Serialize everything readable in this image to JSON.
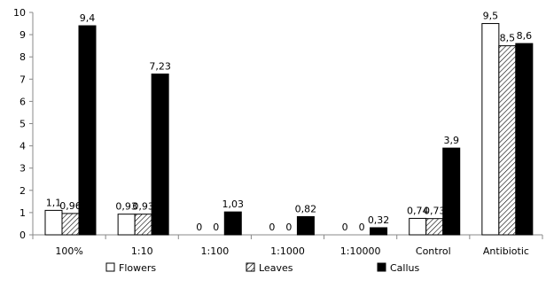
{
  "chart_data": {
    "type": "bar",
    "categories": [
      "100%",
      "1:10",
      "1:100",
      "1:1000",
      "1:10000",
      "Control",
      "Antibiotic"
    ],
    "series": [
      {
        "name": "Flowers",
        "values": [
          1.1,
          0.93,
          0,
          0,
          0,
          0.74,
          9.5
        ],
        "labels": [
          "1,1",
          "0,93",
          "0",
          "0",
          "0",
          "0,74",
          "9,5"
        ],
        "fill": "#ffffff",
        "pattern": "none"
      },
      {
        "name": "Leaves",
        "values": [
          0.96,
          0.93,
          0,
          0,
          0,
          0.73,
          8.5
        ],
        "labels": [
          "0,96",
          "0,93",
          "0",
          "0",
          "0",
          "0,73",
          "8,5"
        ],
        "fill": "#ffffff",
        "pattern": "hatch"
      },
      {
        "name": "Callus",
        "values": [
          9.4,
          7.23,
          1.03,
          0.82,
          0.32,
          3.9,
          8.6
        ],
        "labels": [
          "9,4",
          "7,23",
          "1,03",
          "0,82",
          "0,32",
          "3,9",
          "8,6"
        ],
        "fill": "#000000",
        "pattern": "none"
      }
    ],
    "yticks": [
      0,
      1,
      2,
      3,
      4,
      5,
      6,
      7,
      8,
      9,
      10
    ],
    "ylim": [
      0,
      10
    ],
    "grid": false,
    "legend_position": "bottom",
    "title": "",
    "xlabel": "",
    "ylabel": ""
  }
}
